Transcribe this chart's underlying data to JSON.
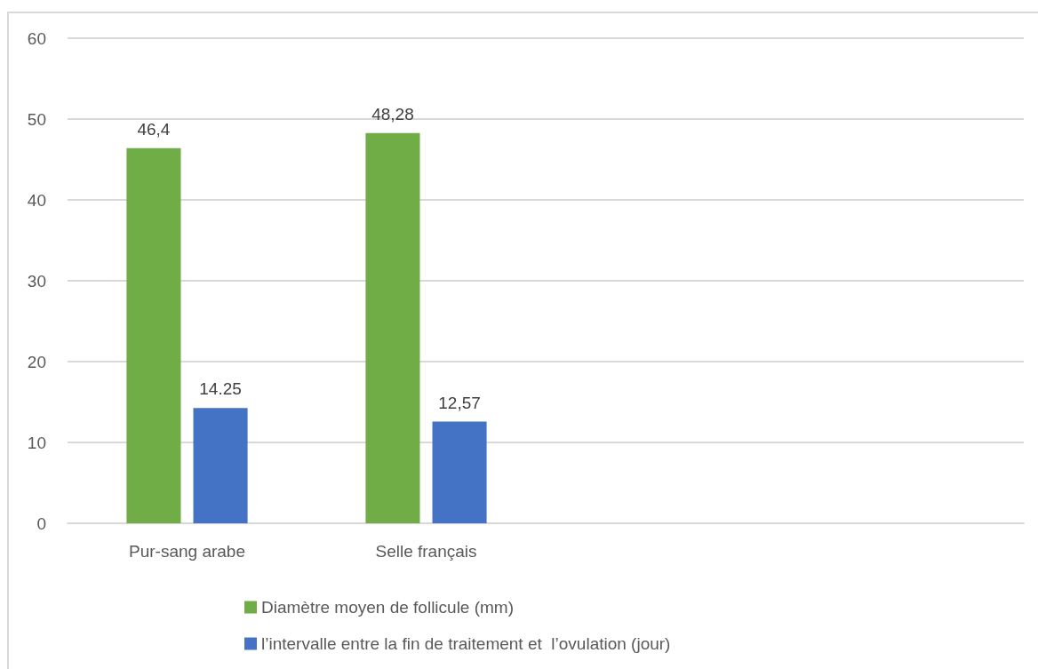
{
  "chart_data": {
    "type": "bar",
    "categories": [
      "Pur-sang arabe",
      "Selle français",
      null,
      null
    ],
    "series": [
      {
        "name": "Diamètre moyen de follicule (mm)",
        "color": "#70ad47",
        "values": [
          46.4,
          48.28,
          null,
          null
        ],
        "value_labels": [
          "46,4",
          "48,28",
          null,
          null
        ]
      },
      {
        "name": "l’intervalle entre la fin de traitement et  l’ovulation (jour)",
        "color": "#4472c4",
        "values": [
          14.25,
          12.57,
          null,
          null
        ],
        "value_labels": [
          "14.25",
          "12,57",
          null,
          null
        ]
      }
    ],
    "ylim": [
      0,
      60
    ],
    "yticks": [
      0,
      10,
      20,
      30,
      40,
      50,
      60
    ],
    "grid": "y",
    "legend": "bottom"
  }
}
